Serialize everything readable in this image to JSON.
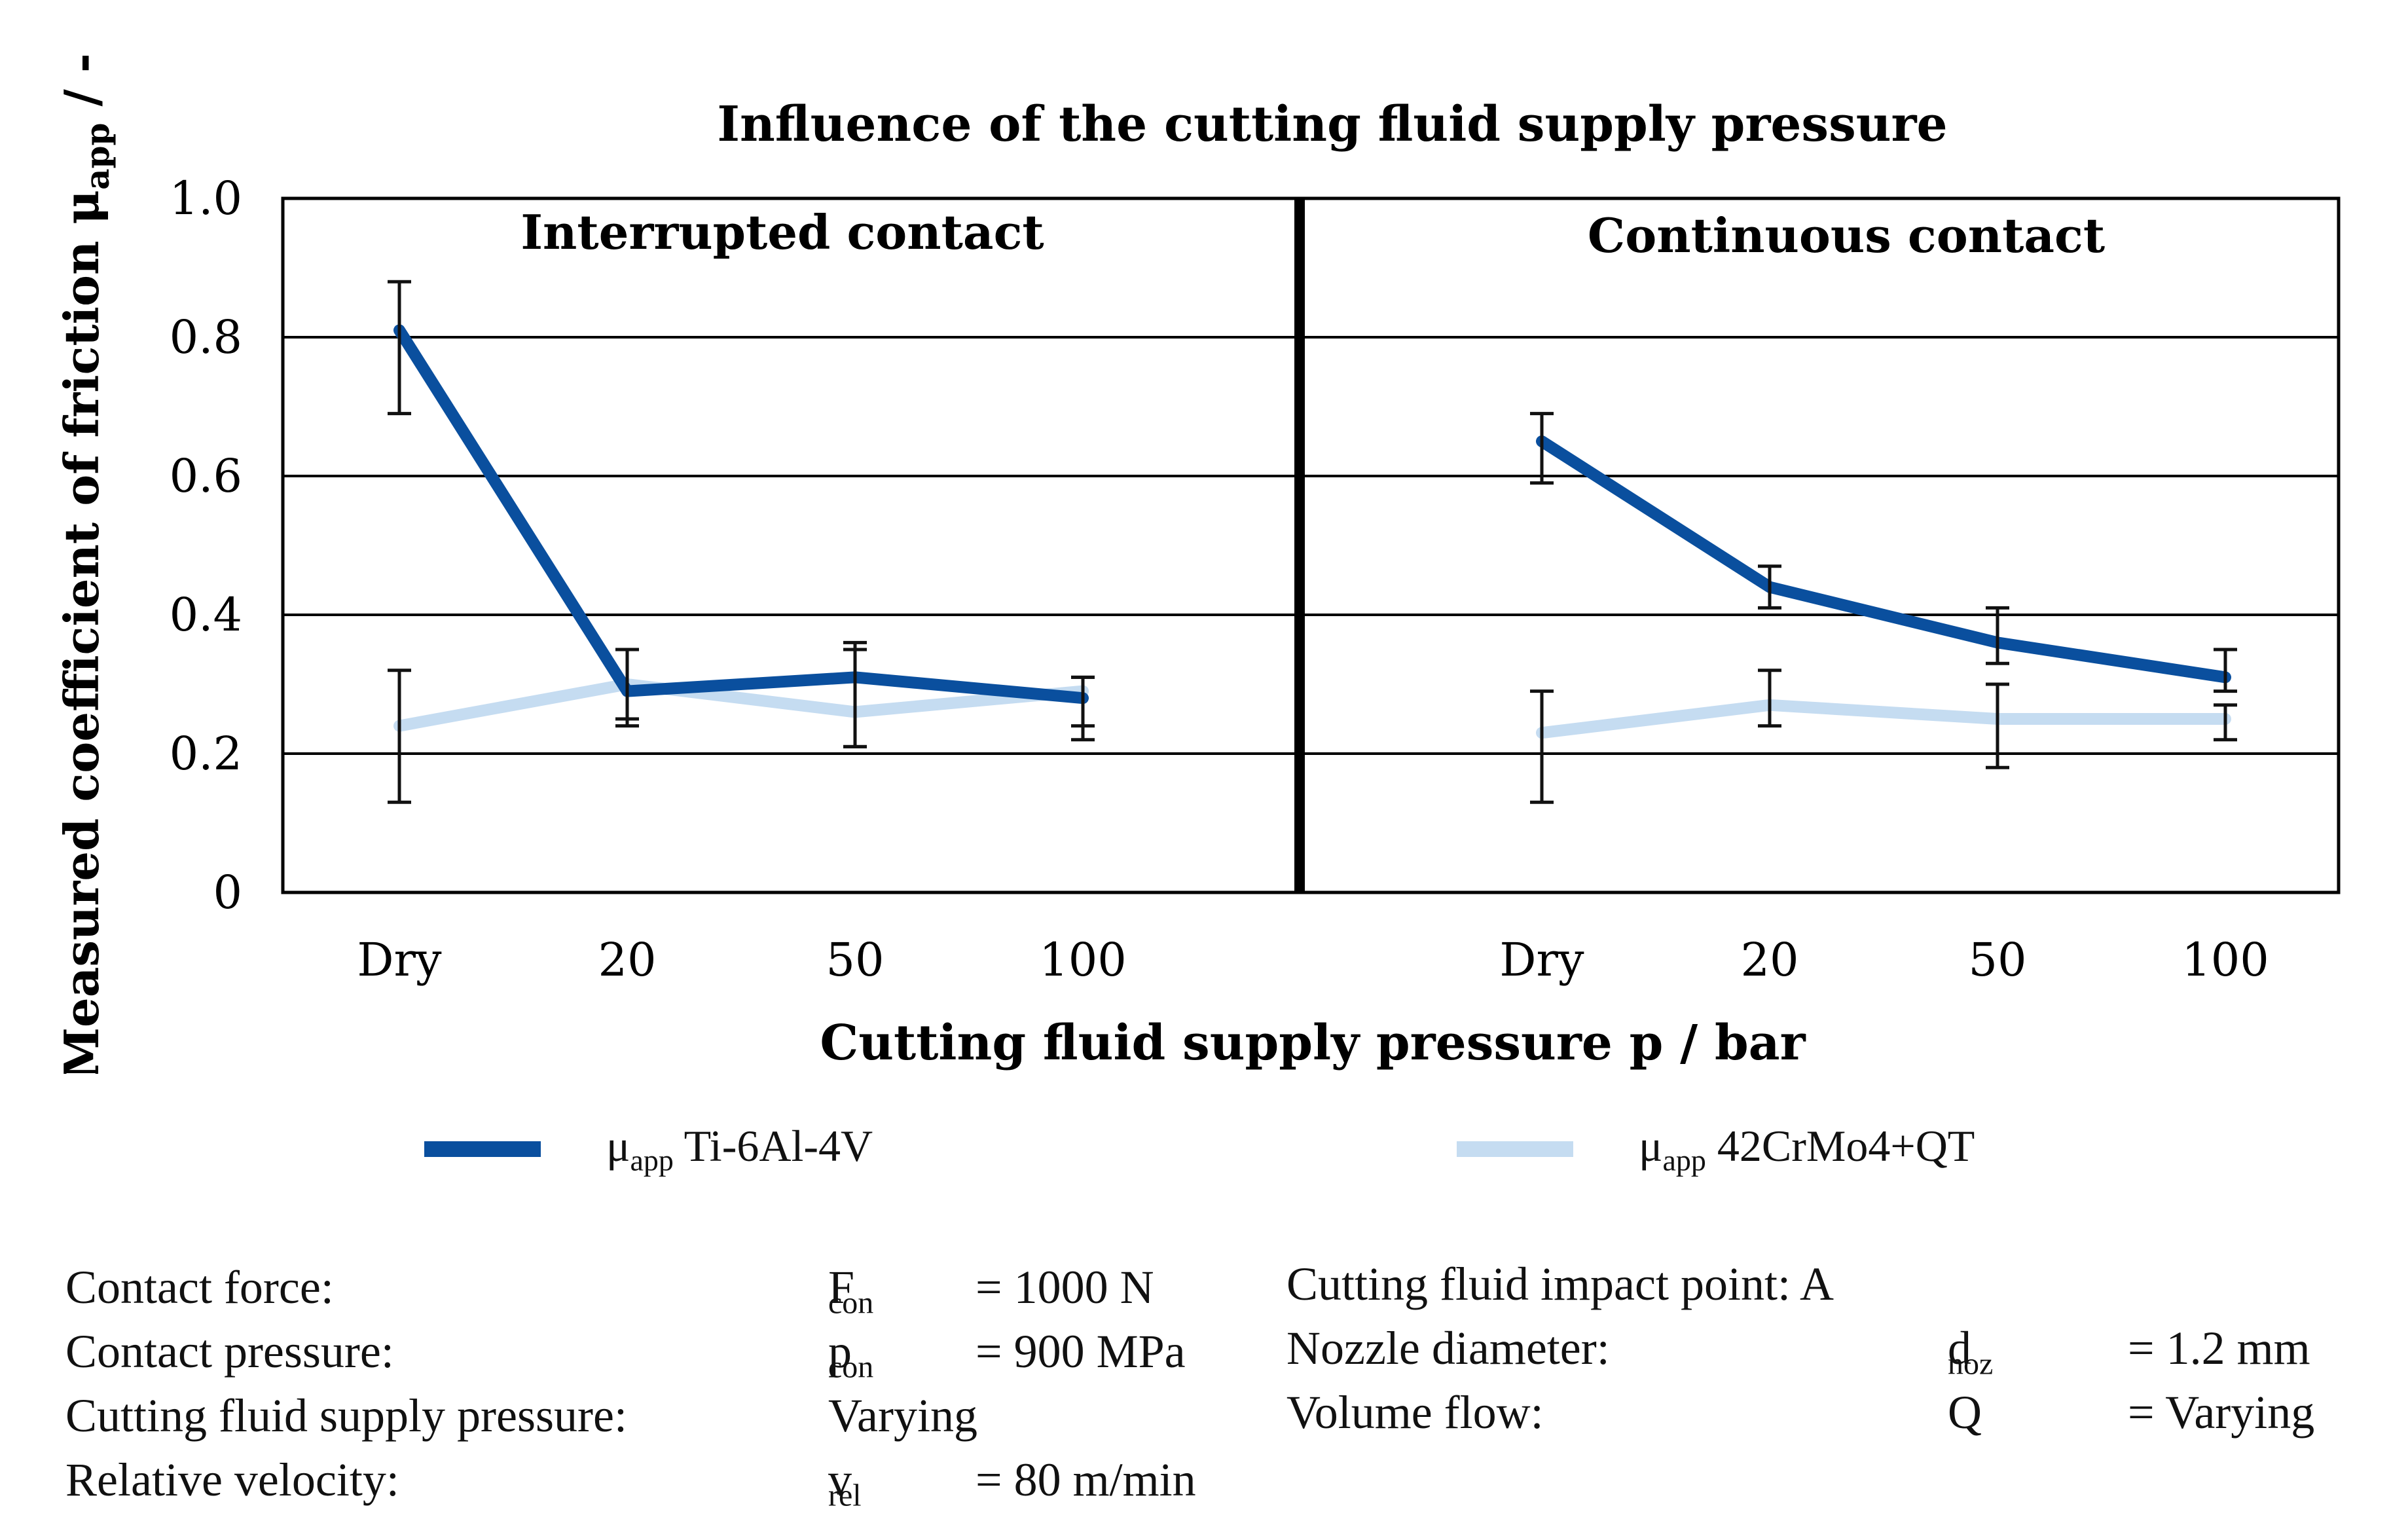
{
  "chart_data": {
    "type": "line",
    "title": "Influence of the cutting fluid supply pressure",
    "ylabel_main": "Measured coefficient of friction μ",
    "ylabel_sub": "app",
    "ylabel_unit": " / -",
    "xlabel": "Cutting fluid supply pressure p / bar",
    "ylim": [
      0,
      1.0
    ],
    "yticks": [
      "0",
      "0.2",
      "0.4",
      "0.6",
      "0.8",
      "1.0"
    ],
    "ytick_values": [
      0,
      0.2,
      0.4,
      0.6,
      0.8,
      1.0
    ],
    "grid": true,
    "panels": [
      {
        "title": "Interrupted contact",
        "categories": [
          "Dry",
          "20",
          "50",
          "100"
        ],
        "series": [
          {
            "name": "Ti-6Al-4V",
            "values": [
              0.81,
              0.29,
              0.31,
              0.28
            ],
            "err_low": [
              0.69,
              0.25,
              0.21,
              0.22
            ],
            "err_high": [
              0.88,
              0.35,
              0.36,
              0.31
            ]
          },
          {
            "name": "42CrMo4+QT",
            "values": [
              0.24,
              0.3,
              0.26,
              0.29
            ],
            "err_low": [
              0.13,
              0.24,
              0.21,
              0.24
            ],
            "err_high": [
              0.32,
              0.35,
              0.35,
              0.31
            ]
          }
        ]
      },
      {
        "title": "Continuous contact",
        "categories": [
          "Dry",
          "20",
          "50",
          "100"
        ],
        "series": [
          {
            "name": "Ti-6Al-4V",
            "values": [
              0.65,
              0.44,
              0.36,
              0.31
            ],
            "err_low": [
              0.59,
              0.41,
              0.33,
              0.29
            ],
            "err_high": [
              0.69,
              0.47,
              0.41,
              0.35
            ]
          },
          {
            "name": "42CrMo4+QT",
            "values": [
              0.23,
              0.27,
              0.25,
              0.25
            ],
            "err_low": [
              0.13,
              0.24,
              0.18,
              0.22
            ],
            "err_high": [
              0.29,
              0.32,
              0.3,
              0.27
            ]
          }
        ]
      }
    ],
    "colors": {
      "Ti-6Al-4V": "#0a4f9e",
      "42CrMo4+QT": "#c5dcf1",
      "error": "#111111"
    }
  },
  "legend": [
    {
      "symbol": "μ",
      "sub": "app",
      "label": " Ti-6Al-4V",
      "color": "#0a4f9e"
    },
    {
      "symbol": "μ",
      "sub": "app",
      "label": " 42CrMo4+QT",
      "color": "#c5dcf1"
    }
  ],
  "params_left": [
    {
      "label": "Contact force:",
      "sym": "F",
      "sub": "con",
      "value": "= 1000 N"
    },
    {
      "label": "Contact pressure:",
      "sym": "p",
      "sub": "con",
      "value": "= 900 MPa"
    },
    {
      "label": "Cutting fluid supply pressure:",
      "sym": "Varying",
      "sub": "",
      "value": ""
    },
    {
      "label": "Relative velocity:",
      "sym": "v",
      "sub": "rel",
      "value": "= 80 m/min"
    }
  ],
  "params_right": [
    {
      "label": "Cutting fluid impact point: A",
      "sym": "",
      "sub": "",
      "value": ""
    },
    {
      "label": "Nozzle diameter:",
      "sym": "d",
      "sub": "noz",
      "value": "= 1.2 mm"
    },
    {
      "label": "Volume flow:",
      "sym": "Q",
      "sub": "",
      "value": "= Varying"
    }
  ]
}
